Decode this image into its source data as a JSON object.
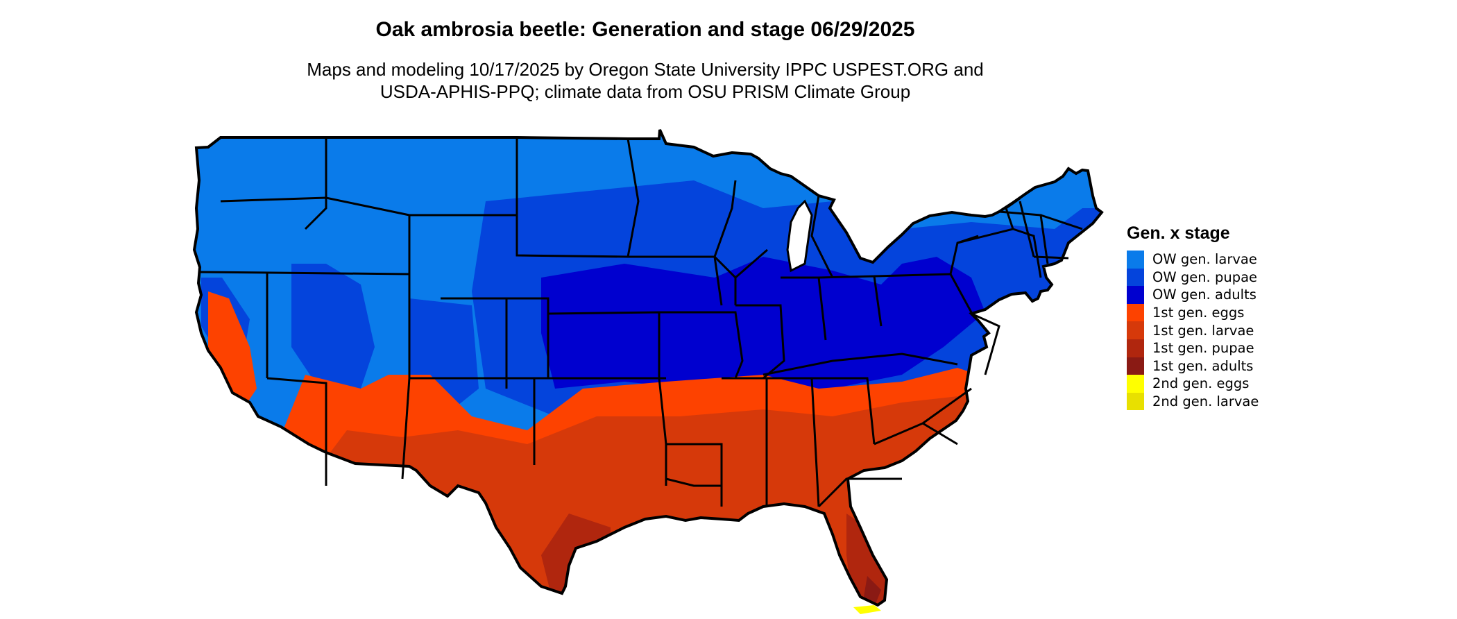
{
  "title": "Oak ambrosia beetle: Generation and stage 06/29/2025",
  "subtitle_line1": "Maps and modeling 10/17/2025 by Oregon State University IPPC USPEST.ORG and",
  "subtitle_line2": "USDA-APHIS-PPQ; climate data from OSU PRISM Climate Group",
  "legend": {
    "title": "Gen. x stage",
    "items": [
      {
        "label": "OW gen. larvae",
        "color": "#0a7bea"
      },
      {
        "label": "OW gen. pupae",
        "color": "#0444dc"
      },
      {
        "label": "OW gen. adults",
        "color": "#0000cf"
      },
      {
        "label": "1st gen. eggs",
        "color": "#fd4200"
      },
      {
        "label": "1st gen. larvae",
        "color": "#d6390a"
      },
      {
        "label": "1st gen. pupae",
        "color": "#b0260e"
      },
      {
        "label": "1st gen. adults",
        "color": "#8a1a14"
      },
      {
        "label": "2nd gen. eggs",
        "color": "#ffff00"
      },
      {
        "label": "2nd gen. larvae",
        "color": "#e8e000"
      }
    ]
  }
}
